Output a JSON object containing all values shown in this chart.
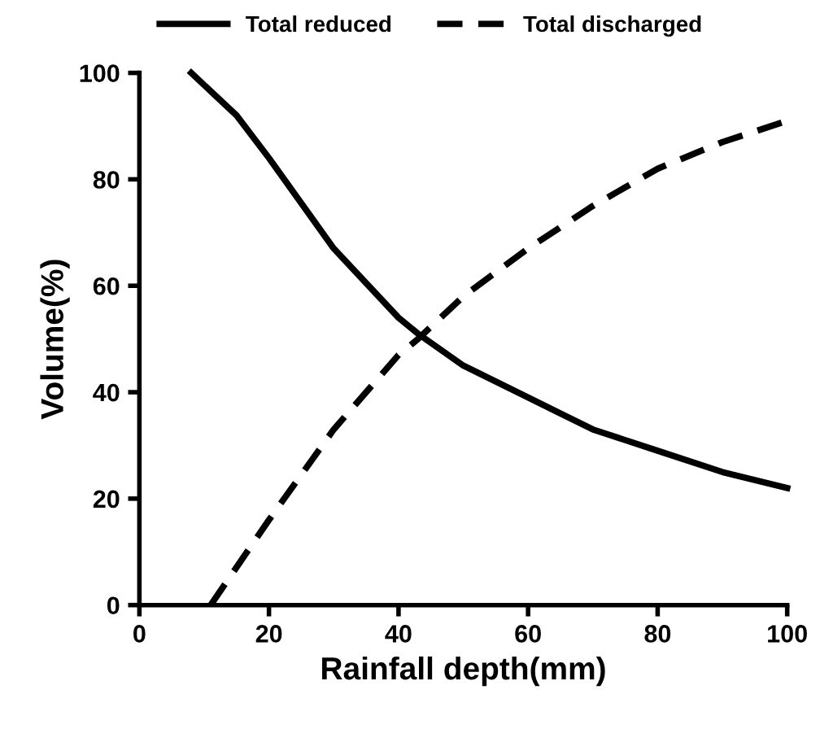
{
  "chart_data": {
    "type": "line",
    "xlabel": "Rainfall depth(mm)",
    "ylabel": "Volume(%)",
    "xlim": [
      0,
      100
    ],
    "ylim": [
      0,
      100
    ],
    "xticks": [
      0,
      20,
      40,
      60,
      80,
      100
    ],
    "yticks": [
      0,
      20,
      40,
      60,
      80,
      100
    ],
    "grid": false,
    "legend": "top",
    "marker": "none",
    "series": [
      {
        "name": "Total reduced",
        "color": "#000000",
        "line_style": "solid",
        "x": [
          8,
          15,
          20,
          30,
          40,
          43,
          50,
          60,
          70,
          80,
          90,
          100
        ],
        "values": [
          100,
          92,
          84,
          67,
          54,
          51,
          45,
          39,
          33,
          29,
          25,
          22
        ]
      },
      {
        "name": "Total discharged",
        "color": "#000000",
        "line_style": "dashed",
        "x": [
          11,
          20,
          30,
          40,
          43,
          50,
          60,
          70,
          80,
          90,
          100
        ],
        "values": [
          0,
          16,
          33,
          47,
          50,
          58,
          67,
          75,
          82,
          87,
          91
        ]
      }
    ]
  }
}
